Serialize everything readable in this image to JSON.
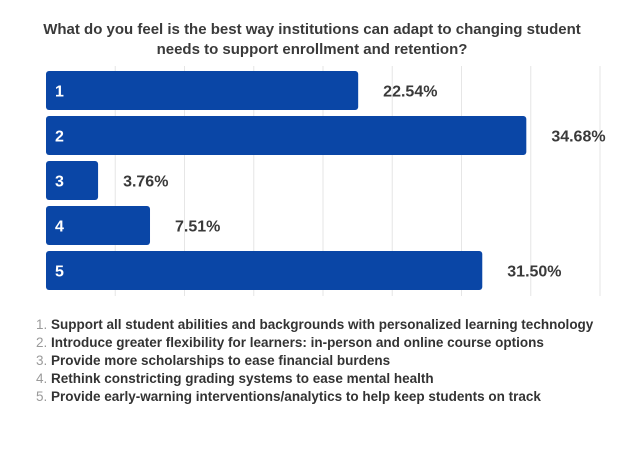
{
  "chart_data": {
    "type": "bar",
    "orientation": "horizontal",
    "title": "What do you feel is the best way institutions can adapt to changing student needs to support enrollment and retention?",
    "categories": [
      "1",
      "2",
      "3",
      "4",
      "5"
    ],
    "values": [
      22.54,
      34.68,
      3.76,
      7.51,
      31.5
    ],
    "data_labels": [
      "22.54%",
      "34.68%",
      "3.76%",
      "7.51%",
      "31.50%"
    ],
    "xlim": [
      0,
      40
    ],
    "grid": true,
    "bar_color": "#0a46a6"
  },
  "legend": [
    {
      "num": "1.",
      "text": "Support all student abilities and backgrounds with personalized learning technology"
    },
    {
      "num": "2.",
      "text": "Introduce greater flexibility for learners: in-person and online course options"
    },
    {
      "num": "3.",
      "text": "Provide more scholarships to ease financial burdens"
    },
    {
      "num": "4.",
      "text": "Rethink constricting grading systems to ease mental health"
    },
    {
      "num": "5.",
      "text": "Provide early-warning interventions/analytics to help keep students on track"
    }
  ]
}
